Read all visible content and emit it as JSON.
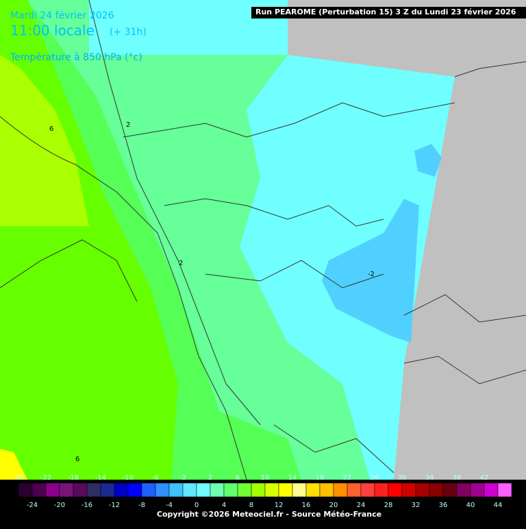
{
  "header": {
    "date": "Mardi 24 février 2026",
    "time": "11:00 locale",
    "lead": "(+ 31h)",
    "parameter": "Température à 850 hPa (°c)",
    "run": "Run PEAROME (Perturbation 15) 3 Z du Lundi 23 février 2026"
  },
  "contour_labels": [
    "6",
    "2",
    "2",
    "-2",
    "6"
  ],
  "legend": {
    "labels_top": [
      -26,
      -22,
      -18,
      -14,
      -10,
      -6,
      -2,
      2,
      6,
      10,
      14,
      18,
      22,
      26,
      30,
      34,
      38,
      42
    ],
    "labels_bottom": [
      -24,
      -20,
      -16,
      -12,
      -8,
      -4,
      0,
      4,
      8,
      12,
      16,
      20,
      24,
      28,
      32,
      36,
      40,
      44
    ],
    "colors": [
      "#2a0030",
      "#4b0050",
      "#8c008c",
      "#781478",
      "#5a0a5a",
      "#2e2e66",
      "#1a2a90",
      "#0000c8",
      "#0000ff",
      "#2060ff",
      "#3090ff",
      "#40c0ff",
      "#60e8ff",
      "#70ffff",
      "#70ffb0",
      "#60ff70",
      "#70ff30",
      "#a0ff00",
      "#d8ff00",
      "#ffff00",
      "#ffff90",
      "#ffe000",
      "#ffc000",
      "#ff9000",
      "#ff6030",
      "#ff4040",
      "#ff2020",
      "#ff0000",
      "#d00000",
      "#a80000",
      "#880000",
      "#660010",
      "#800060",
      "#a00090",
      "#d000d0",
      "#ff60ff"
    ]
  },
  "copyright": "Copyright ©2026 Meteociel.fr - Source Météo-France"
}
